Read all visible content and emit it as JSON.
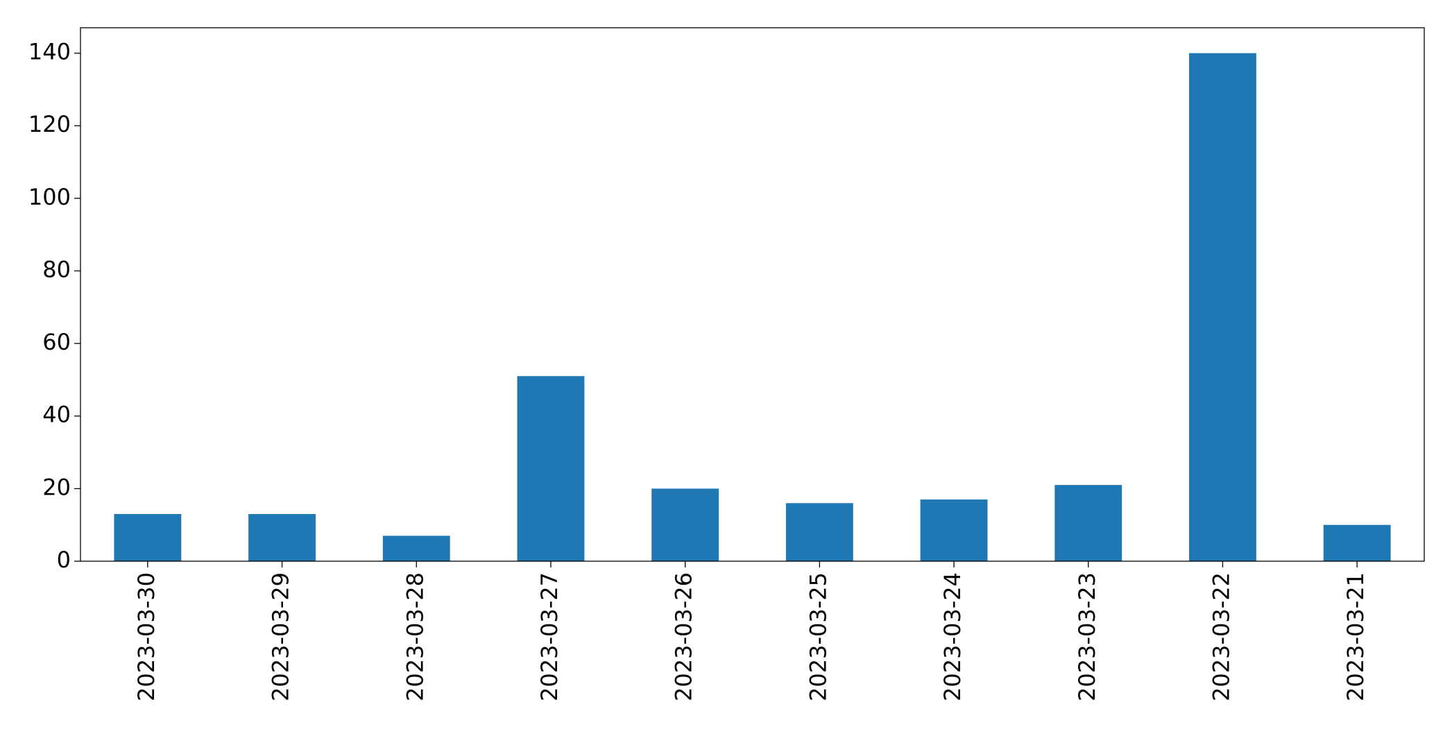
{
  "chart_data": {
    "type": "bar",
    "categories": [
      "2023-03-30",
      "2023-03-29",
      "2023-03-28",
      "2023-03-27",
      "2023-03-26",
      "2023-03-25",
      "2023-03-24",
      "2023-03-23",
      "2023-03-22",
      "2023-03-21"
    ],
    "values": [
      13,
      13,
      7,
      51,
      20,
      16,
      17,
      21,
      140,
      10
    ],
    "color": "#1f77b4",
    "ylim": [
      0,
      147
    ],
    "yticks": [
      0,
      20,
      40,
      60,
      80,
      100,
      120,
      140
    ],
    "grid": false
  }
}
